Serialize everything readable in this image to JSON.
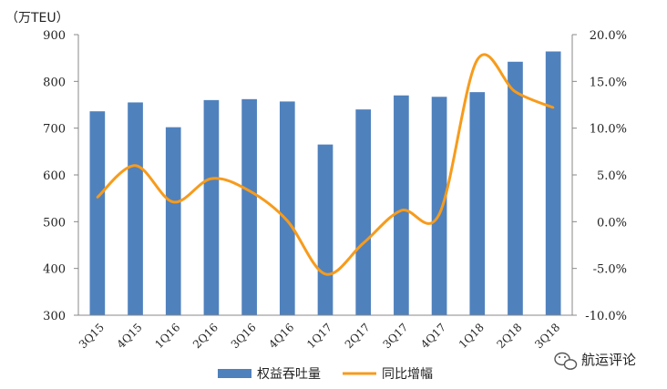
{
  "chart_data": {
    "type": "bar+line",
    "unit_label": "（万TEU）",
    "categories": [
      "3Q15",
      "4Q15",
      "1Q16",
      "2Q16",
      "3Q16",
      "4Q16",
      "1Q17",
      "2Q17",
      "3Q17",
      "4Q17",
      "1Q18",
      "2Q18",
      "3Q18"
    ],
    "series": [
      {
        "name": "权益吞吐量",
        "type": "bar",
        "axis": "left",
        "color": "#4f81bd",
        "values": [
          736,
          755,
          702,
          760,
          762,
          757,
          665,
          740,
          770,
          767,
          777,
          842,
          864
        ]
      },
      {
        "name": "同比增幅",
        "type": "line",
        "axis": "right",
        "color": "#f79b1c",
        "values": [
          2.6,
          6.0,
          2.1,
          4.6,
          3.3,
          0.1,
          -5.6,
          -2.3,
          1.2,
          0.8,
          17.3,
          13.9,
          12.2
        ]
      }
    ],
    "y_left": {
      "min": 300,
      "max": 900,
      "ticks": [
        "300",
        "400",
        "500",
        "600",
        "700",
        "800",
        "900"
      ]
    },
    "y_right": {
      "min": -10,
      "max": 20,
      "ticks": [
        "-10.0%",
        "-5.0%",
        "0.0%",
        "5.0%",
        "10.0%",
        "15.0%",
        "20.0%"
      ]
    },
    "legend_position": "bottom",
    "grid": false
  },
  "watermark": {
    "text": "航运评论",
    "icon": "wechat-icon"
  }
}
